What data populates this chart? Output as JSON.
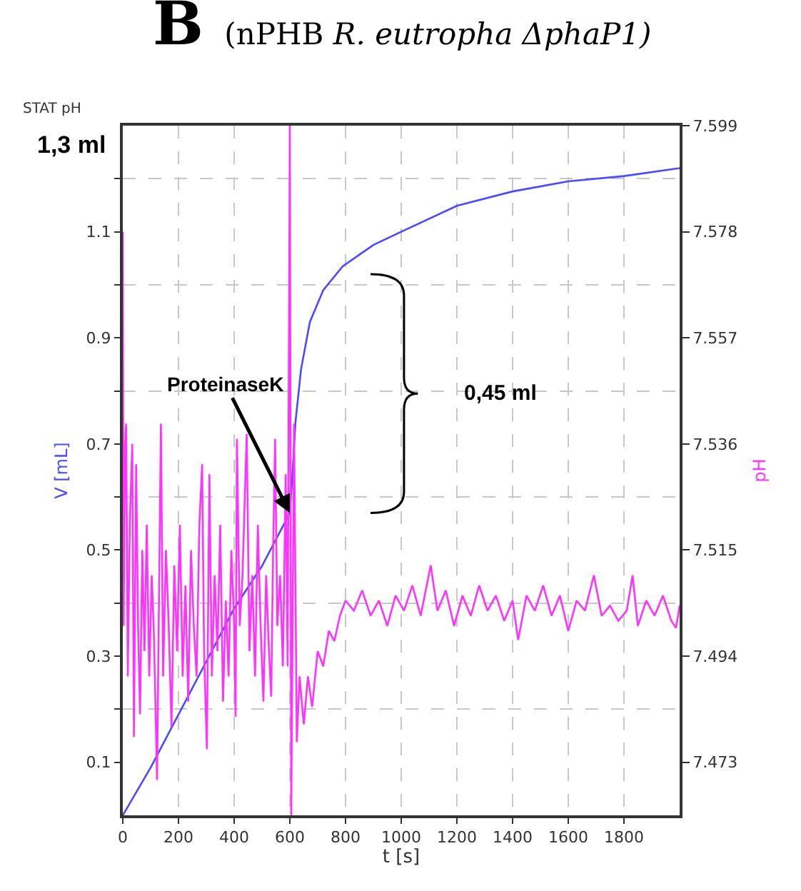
{
  "chart_data": {
    "type": "line",
    "title": "B (nPHB R. eutropha ΔphaP1)",
    "xlabel": "t [s]",
    "ylabel": "V [mL]",
    "y2label": "pH",
    "xlim": [
      0,
      2000
    ],
    "xticks": [
      0,
      200,
      400,
      600,
      800,
      1000,
      1200,
      1400,
      1600,
      1800
    ],
    "ylim": [
      0,
      1.3
    ],
    "yticks": [
      0.1,
      {
        "value": 0.2,
        "label": null
      },
      0.3,
      {
        "value": 0.4,
        "label": null
      },
      0.5,
      {
        "value": 0.6,
        "label": null
      },
      0.7,
      {
        "value": 0.8,
        "label": null
      },
      0.9,
      {
        "value": 1.0,
        "label": null
      },
      1.1,
      {
        "value": 1.2,
        "label": null
      }
    ],
    "y2lim": [
      7.4625,
      7.599
    ],
    "y2ticks": [
      7.473,
      7.494,
      7.515,
      7.536,
      7.557,
      7.578,
      7.599
    ],
    "grid": true,
    "marker": "none",
    "line_style": "solid",
    "annotations": [
      "STAT pH",
      "1,3 ml",
      {
        "text": "ProteinaseK",
        "x": 600,
        "y": 0.57
      },
      "0,45 ml"
    ],
    "series": [
      {
        "color": "#4a4aff",
        "x": [
          0,
          100,
          200,
          300,
          400,
          500,
          580,
          600,
          610,
          620,
          640,
          672,
          720,
          790,
          900,
          1000,
          1200,
          1400,
          1600,
          1800,
          2000
        ],
        "values": [
          0.0,
          0.09,
          0.19,
          0.29,
          0.39,
          0.47,
          0.55,
          0.57,
          0.65,
          0.74,
          0.84,
          0.93,
          0.99,
          1.035,
          1.075,
          1.1,
          1.149,
          1.176,
          1.195,
          1.205,
          1.22
        ]
      },
      {
        "color": "#ff33ff",
        "axis": "y2",
        "x": [
          0,
          3,
          8,
          12,
          18,
          25,
          34,
          40,
          48,
          55,
          62,
          70,
          78,
          86,
          95,
          104,
          112,
          123,
          130,
          137,
          145,
          155,
          165,
          175,
          185,
          195,
          205,
          215,
          225,
          235,
          245,
          255,
          265,
          275,
          285,
          292,
          302,
          311,
          320,
          330,
          340,
          350,
          360,
          370,
          380,
          390,
          400,
          405,
          410,
          420,
          430,
          445,
          455,
          465,
          475,
          485,
          495,
          505,
          515,
          525,
          533,
          540,
          547,
          555,
          565,
          575,
          585,
          592,
          600,
          605,
          615,
          625,
          635,
          650,
          665,
          680,
          700,
          720,
          740,
          760,
          780,
          800,
          830,
          860,
          890,
          920,
          950,
          980,
          1010,
          1040,
          1070,
          1106,
          1130,
          1160,
          1190,
          1220,
          1250,
          1280,
          1310,
          1340,
          1370,
          1400,
          1420,
          1450,
          1480,
          1510,
          1540,
          1570,
          1600,
          1630,
          1660,
          1692,
          1720,
          1750,
          1780,
          1810,
          1831,
          1850,
          1880,
          1910,
          1940,
          1970,
          1987,
          2000
        ],
        "values": [
          7.578,
          7.5,
          7.535,
          7.54,
          7.49,
          7.52,
          7.536,
          7.478,
          7.532,
          7.5,
          7.4825,
          7.515,
          7.495,
          7.52,
          7.49,
          7.51,
          7.498,
          7.4695,
          7.505,
          7.54,
          7.49,
          7.515,
          7.5,
          7.48,
          7.512,
          7.495,
          7.52,
          7.49,
          7.508,
          7.485,
          7.515,
          7.5,
          7.49,
          7.52,
          7.532,
          7.495,
          7.4756,
          7.53,
          7.49,
          7.51,
          7.495,
          7.52,
          7.485,
          7.505,
          7.49,
          7.515,
          7.5,
          7.482,
          7.537,
          7.5,
          7.51,
          7.538,
          7.495,
          7.51,
          7.49,
          7.52,
          7.5,
          7.485,
          7.51,
          7.495,
          7.486,
          7.515,
          7.537,
          7.5,
          7.51,
          7.492,
          7.53,
          7.492,
          7.599,
          7.4625,
          7.54,
          7.477,
          7.49,
          7.4805,
          7.49,
          7.484,
          7.495,
          7.492,
          7.499,
          7.497,
          7.502,
          7.505,
          7.503,
          7.507,
          7.502,
          7.505,
          7.5,
          7.506,
          7.503,
          7.508,
          7.502,
          7.512,
          7.503,
          7.507,
          7.5,
          7.506,
          7.502,
          7.508,
          7.503,
          7.506,
          7.501,
          7.505,
          7.4972,
          7.506,
          7.503,
          7.508,
          7.502,
          7.506,
          7.499,
          7.505,
          7.503,
          7.51,
          7.502,
          7.504,
          7.501,
          7.503,
          7.51,
          7.5,
          7.505,
          7.502,
          7.506,
          7.501,
          7.4996,
          7.504
        ]
      }
    ]
  }
}
